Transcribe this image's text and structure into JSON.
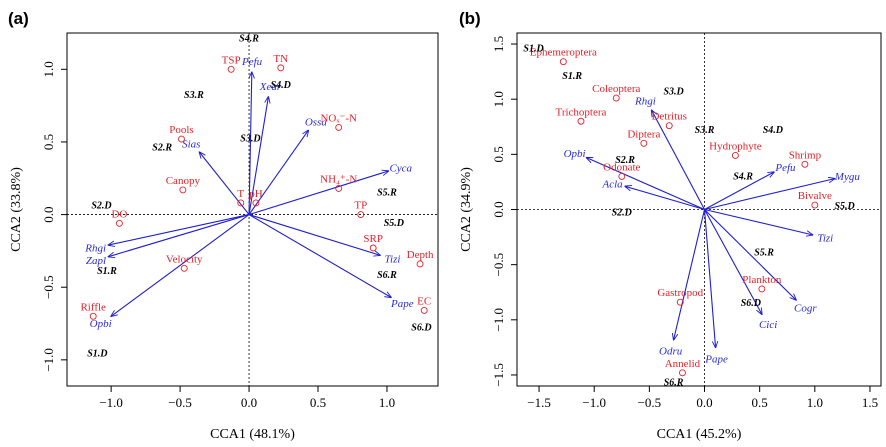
{
  "chart_data": [
    {
      "type": "scatter",
      "panel": "(a)",
      "xlabel": "CCA1 (48.1%)",
      "ylabel": "CCA2 (33.8%)",
      "xlim": [
        -1.32,
        1.37
      ],
      "ylim": [
        -1.18,
        1.25
      ],
      "xticks": [
        -1.0,
        -0.5,
        0.0,
        0.5,
        1.0
      ],
      "xtick_labels": [
        "−1.0",
        "−0.5",
        "0.0",
        "0.5",
        "1.0"
      ],
      "yticks": [
        -1.0,
        -0.5,
        0.0,
        0.5,
        1.0
      ],
      "ytick_labels": [
        "−1.0",
        "−0.5",
        "0.0",
        "0.5",
        "1.0"
      ],
      "env_points": [
        {
          "label": "TSP",
          "x": -0.13,
          "y": 1.0
        },
        {
          "label": "TN",
          "x": 0.23,
          "y": 1.01
        },
        {
          "label": "Pools",
          "x": -0.49,
          "y": 0.52
        },
        {
          "label": "Canopy",
          "x": -0.48,
          "y": 0.17
        },
        {
          "label": "NOₓ⁻-N",
          "x": 0.65,
          "y": 0.6
        },
        {
          "label": "NH₄⁺-N",
          "x": 0.65,
          "y": 0.18
        },
        {
          "label": "TP",
          "x": 0.81,
          "y": 0.0
        },
        {
          "label": "T",
          "x": -0.06,
          "y": 0.08
        },
        {
          "label": "pH",
          "x": 0.05,
          "y": 0.08
        },
        {
          "label": "DO",
          "x": -0.94,
          "y": -0.06
        },
        {
          "label": "Velocity",
          "x": -0.47,
          "y": -0.37
        },
        {
          "label": "SRP",
          "x": 0.9,
          "y": -0.23
        },
        {
          "label": "Depth",
          "x": 1.24,
          "y": -0.34
        },
        {
          "label": "Riffle",
          "x": -1.13,
          "y": -0.7
        },
        {
          "label": "EC",
          "x": 1.27,
          "y": -0.66
        }
      ],
      "species_arrows": [
        {
          "label": "Pefu",
          "x": 0.02,
          "y": 0.98
        },
        {
          "label": "Xear",
          "x": 0.14,
          "y": 0.81
        },
        {
          "label": "Ossa",
          "x": 0.43,
          "y": 0.58
        },
        {
          "label": "Sias",
          "x": -0.36,
          "y": 0.43
        },
        {
          "label": "Cyca",
          "x": 1.01,
          "y": 0.3
        },
        {
          "label": "Rhgi",
          "x": -1.02,
          "y": -0.21
        },
        {
          "label": "Zapl",
          "x": -1.02,
          "y": -0.29
        },
        {
          "label": "Tizi",
          "x": 0.95,
          "y": -0.28
        },
        {
          "label": "Pape",
          "x": 1.03,
          "y": -0.57
        },
        {
          "label": "Opbi",
          "x": -1.0,
          "y": -0.7
        }
      ],
      "sites": [
        {
          "label": "S4.R",
          "x": 0.0,
          "y": 1.22
        },
        {
          "label": "S4.D",
          "x": 0.23,
          "y": 0.9
        },
        {
          "label": "S3.R",
          "x": -0.4,
          "y": 0.83
        },
        {
          "label": "S3.D",
          "x": 0.01,
          "y": 0.53
        },
        {
          "label": "S2.R",
          "x": -0.63,
          "y": 0.47
        },
        {
          "label": "S5.R",
          "x": 1.0,
          "y": 0.16
        },
        {
          "label": "S2.D",
          "x": -1.07,
          "y": 0.07
        },
        {
          "label": "S5.D",
          "x": 1.05,
          "y": -0.05
        },
        {
          "label": "S1.R",
          "x": -1.03,
          "y": -0.38
        },
        {
          "label": "S6.R",
          "x": 1.0,
          "y": -0.41
        },
        {
          "label": "S6.D",
          "x": 1.25,
          "y": -0.77
        },
        {
          "label": "S1.D",
          "x": -1.1,
          "y": -0.95
        }
      ]
    },
    {
      "type": "scatter",
      "panel": "(b)",
      "xlabel": "CCA1 (45.2%)",
      "ylabel": "CCA2 (34.9%)",
      "xlim": [
        -1.7,
        1.6
      ],
      "ylim": [
        -1.6,
        1.6
      ],
      "xticks": [
        -1.5,
        -1.0,
        -0.5,
        0.0,
        0.5,
        1.0,
        1.5
      ],
      "xtick_labels": [
        "−1.5",
        "−1.0",
        "−0.5",
        "0.0",
        "0.5",
        "1.0",
        "1.5"
      ],
      "yticks": [
        -1.5,
        -1.0,
        -0.5,
        0.0,
        0.5,
        1.0,
        1.5
      ],
      "ytick_labels": [
        "−1.5",
        "−1.0",
        "−0.5",
        "0.0",
        "0.5",
        "1.0",
        "1.5"
      ],
      "env_points": [
        {
          "label": "Ephemeroptera",
          "x": -1.28,
          "y": 1.34
        },
        {
          "label": "Coleoptera",
          "x": -0.8,
          "y": 1.01
        },
        {
          "label": "Trichoptera",
          "x": -1.12,
          "y": 0.8
        },
        {
          "label": "Detritus",
          "x": -0.32,
          "y": 0.76
        },
        {
          "label": "Diptera",
          "x": -0.55,
          "y": 0.6
        },
        {
          "label": "Hydrophyte",
          "x": 0.28,
          "y": 0.49
        },
        {
          "label": "Shrimp",
          "x": 0.91,
          "y": 0.41
        },
        {
          "label": "Odonate",
          "x": -0.75,
          "y": 0.3
        },
        {
          "label": "Bivalve",
          "x": 1.0,
          "y": 0.04
        },
        {
          "label": "Plankton",
          "x": 0.52,
          "y": -0.72
        },
        {
          "label": "Gastropod",
          "x": -0.22,
          "y": -0.84
        },
        {
          "label": "Annelid",
          "x": -0.2,
          "y": -1.48
        }
      ],
      "species_arrows": [
        {
          "label": "Rhgi",
          "x": -0.48,
          "y": 0.9
        },
        {
          "label": "Opbi",
          "x": -1.07,
          "y": 0.47
        },
        {
          "label": "Acla",
          "x": -0.72,
          "y": 0.21
        },
        {
          "label": "Pefu",
          "x": 0.63,
          "y": 0.34
        },
        {
          "label": "Mygu",
          "x": 1.18,
          "y": 0.28
        },
        {
          "label": "Tizi",
          "x": 0.98,
          "y": -0.23
        },
        {
          "label": "Cogr",
          "x": 0.83,
          "y": -0.82
        },
        {
          "label": "Cici",
          "x": 0.52,
          "y": -0.95
        },
        {
          "label": "Odru",
          "x": -0.28,
          "y": -1.18
        },
        {
          "label": "Pape",
          "x": 0.1,
          "y": -1.25
        }
      ],
      "sites": [
        {
          "label": "S1.D",
          "x": -1.55,
          "y": 1.47
        },
        {
          "label": "S1.R",
          "x": -1.2,
          "y": 1.22
        },
        {
          "label": "S3.D",
          "x": -0.28,
          "y": 1.08
        },
        {
          "label": "S3.R",
          "x": 0.0,
          "y": 0.73
        },
        {
          "label": "S4.D",
          "x": 0.62,
          "y": 0.73
        },
        {
          "label": "S2.R",
          "x": -0.72,
          "y": 0.46
        },
        {
          "label": "S4.R",
          "x": 0.35,
          "y": 0.31
        },
        {
          "label": "S5.D",
          "x": 1.27,
          "y": 0.04
        },
        {
          "label": "S2.D",
          "x": -0.75,
          "y": -0.02
        },
        {
          "label": "S5.R",
          "x": 0.54,
          "y": -0.38
        },
        {
          "label": "S6.D",
          "x": 0.42,
          "y": -0.84
        },
        {
          "label": "S6.R",
          "x": -0.28,
          "y": -1.56
        }
      ]
    }
  ]
}
